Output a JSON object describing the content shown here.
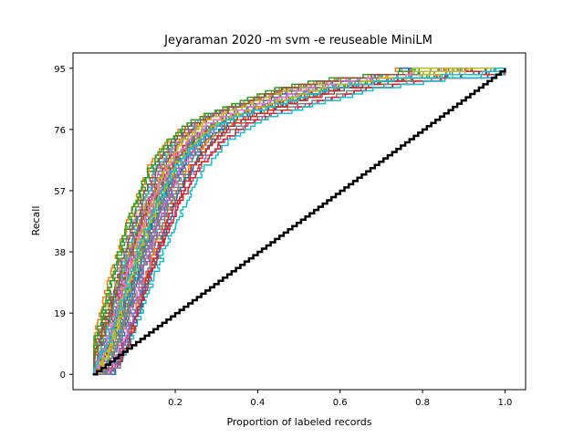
{
  "chart_data": {
    "type": "line",
    "title": "Jeyaraman 2020 -m svm -e reuseable MiniLM",
    "xlabel": "Proportion of labeled records",
    "ylabel": "Recall",
    "xlim": [
      -0.048,
      1.05
    ],
    "ylim": [
      -4.75,
      99.75
    ],
    "xticks": [
      0.2,
      0.4,
      0.6,
      0.8,
      1.0
    ],
    "xtick_labels": [
      "0.2",
      "0.4",
      "0.6",
      "0.8",
      "1.0"
    ],
    "yticks": [
      0,
      19,
      38,
      57,
      76,
      95
    ],
    "ytick_labels": [
      "0",
      "19",
      "38",
      "57",
      "76",
      "95"
    ],
    "grid": false,
    "legend": "none",
    "total_relevant": 95,
    "random_baseline": {
      "color": "#000000",
      "x": [
        0.0,
        1.0
      ],
      "y": [
        0,
        95
      ]
    },
    "series_colors": [
      "#1f77b4",
      "#ff7f0e",
      "#2ca02c",
      "#d62728",
      "#9467bd",
      "#8c564b",
      "#e377c2",
      "#7f7f7f",
      "#bcbd22",
      "#17becf"
    ],
    "series_count": 40,
    "reference_curve": {
      "x": [
        0.0,
        0.02,
        0.05,
        0.08,
        0.11,
        0.14,
        0.17,
        0.2,
        0.25,
        0.3,
        0.35,
        0.4,
        0.45,
        0.5,
        0.55,
        0.6,
        0.7,
        0.8,
        0.9,
        1.0
      ],
      "y": [
        0,
        3,
        12,
        25,
        37,
        48,
        57,
        65,
        73,
        78,
        81,
        83,
        85,
        87,
        89,
        90,
        92,
        93,
        94,
        95
      ]
    }
  }
}
